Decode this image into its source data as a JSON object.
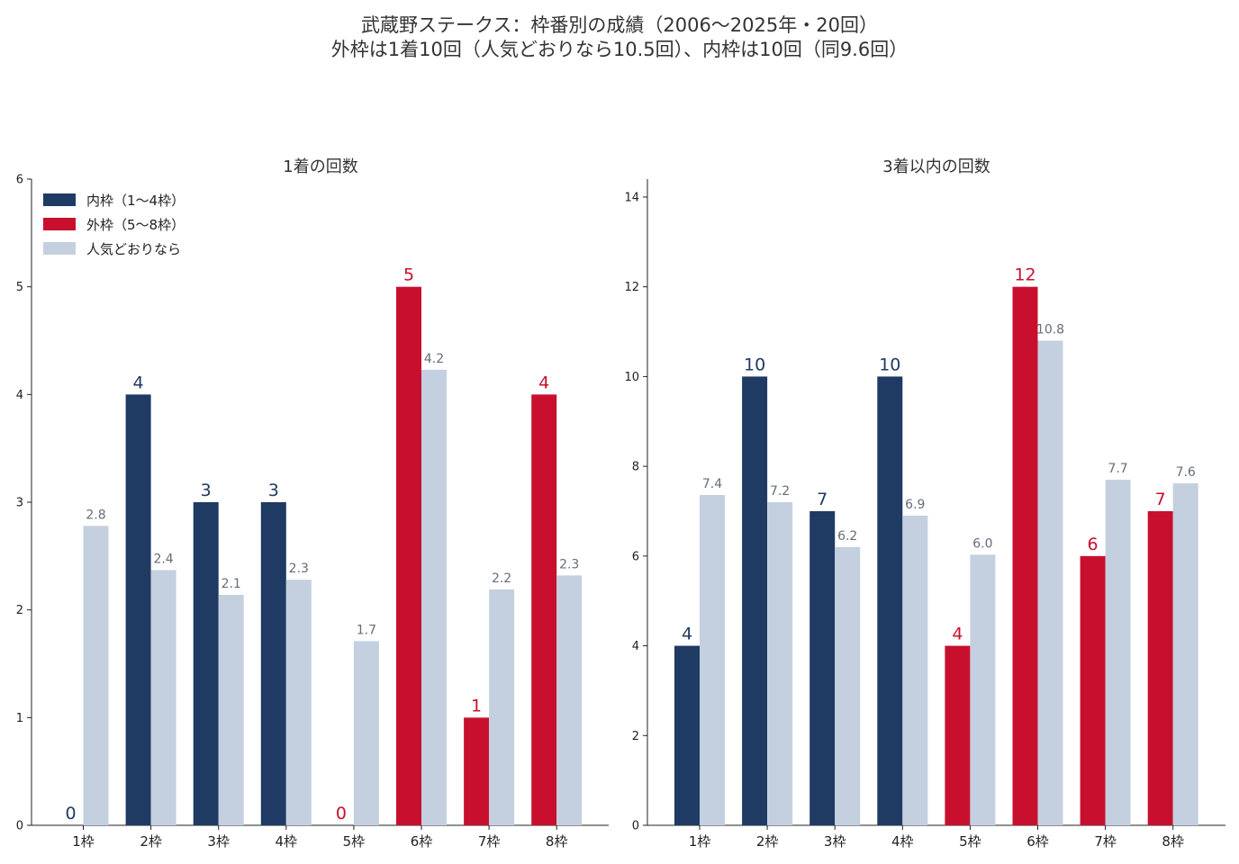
{
  "title": "武蔵野ステークス：枠番別の成績（2006〜2025年・20回）",
  "subtitle": "外枠は1着10回（人気どおりなら10.5回）、内枠は10回（同9.6回）",
  "colors": {
    "inner": "#1f3a63",
    "outer": "#c8102e",
    "expected": "#c4d0df",
    "text": "#333333"
  },
  "legend": {
    "placement": "top-left",
    "items": [
      "内枠（1〜4枠）",
      "外枠（5〜8枠）",
      "人気どおりなら"
    ]
  },
  "chart_data": [
    {
      "type": "bar",
      "title": "1着の回数",
      "categories": [
        "1枠",
        "2枠",
        "3枠",
        "4枠",
        "5枠",
        "6枠",
        "7枠",
        "8枠"
      ],
      "groups": [
        "inner",
        "inner",
        "inner",
        "inner",
        "outer",
        "outer",
        "outer",
        "outer"
      ],
      "series": [
        {
          "name": "実績",
          "values": [
            0,
            4,
            3,
            3,
            0,
            5,
            1,
            4
          ],
          "labels": [
            "0",
            "4",
            "3",
            "3",
            "0",
            "5",
            "1",
            "4"
          ]
        },
        {
          "name": "人気どおりなら",
          "values": [
            2.78,
            2.37,
            2.14,
            2.28,
            1.71,
            4.23,
            2.19,
            2.32
          ],
          "labels": [
            "2.8",
            "2.4",
            "2.1",
            "2.3",
            "1.7",
            "4.2",
            "2.2",
            "2.3"
          ]
        }
      ],
      "ylim": [
        0,
        6
      ],
      "yticks": [
        "0",
        "1",
        "2",
        "3",
        "4",
        "5",
        "6"
      ],
      "grid": false
    },
    {
      "type": "bar",
      "title": "3着以内の回数",
      "categories": [
        "1枠",
        "2枠",
        "3枠",
        "4枠",
        "5枠",
        "6枠",
        "7枠",
        "8枠"
      ],
      "groups": [
        "inner",
        "inner",
        "inner",
        "inner",
        "outer",
        "outer",
        "outer",
        "outer"
      ],
      "series": [
        {
          "name": "実績",
          "values": [
            4,
            10,
            7,
            10,
            4,
            12,
            6,
            7
          ],
          "labels": [
            "4",
            "10",
            "7",
            "10",
            "4",
            "12",
            "6",
            "7"
          ]
        },
        {
          "name": "人気どおりなら",
          "values": [
            7.36,
            7.2,
            6.2,
            6.9,
            6.03,
            10.8,
            7.7,
            7.62
          ],
          "labels": [
            "7.4",
            "7.2",
            "6.2",
            "6.9",
            "6.0",
            "10.8",
            "7.7",
            "7.6"
          ]
        }
      ],
      "ylim": [
        0,
        14.4
      ],
      "yticks": [
        "0",
        "2",
        "4",
        "6",
        "8",
        "10",
        "12",
        "14"
      ],
      "grid": false
    }
  ]
}
